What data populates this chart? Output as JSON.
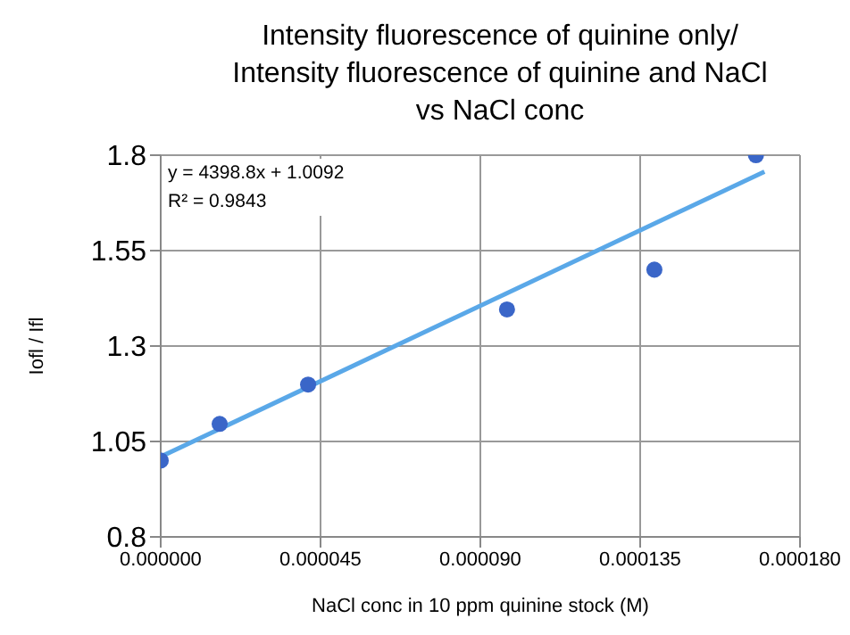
{
  "chart_data": {
    "type": "scatter",
    "title": "Intensity fluorescence of quinine only/ Intensity fluorescence of quinine and NaCl vs NaCl conc",
    "xlabel": "NaCl conc in 10 ppm quinine stock (M)",
    "ylabel": "Iofl / Ifl",
    "series": [
      {
        "color": "#3a66c8",
        "marker": "circle",
        "x": [
          0,
          1.66e-05,
          4.15e-05,
          9.75e-05,
          0.000139,
          0.0001676
        ],
        "values": [
          1.0,
          1.096,
          1.199,
          1.396,
          1.5,
          1.8
        ]
      },
      {
        "type": "line",
        "color": "#5aa8e8",
        "marker": "none",
        "x": [
          0,
          0.00017
        ],
        "values": [
          1.01,
          1.757
        ]
      }
    ],
    "xlim": [
      0,
      0.00018
    ],
    "xticks": [
      {
        "value": 0,
        "label": "0.000000"
      },
      {
        "value": 4.5e-05,
        "label": "0.000045"
      },
      {
        "value": 9e-05,
        "label": "0.000090"
      },
      {
        "value": 0.000135,
        "label": "0.000135"
      },
      {
        "value": 0.00018,
        "label": "0.000180"
      }
    ],
    "ylim": [
      0.8,
      1.8
    ],
    "yticks": [
      0.8,
      1.05,
      1.3,
      1.55,
      1.8
    ],
    "grid": true,
    "line_style": "solid",
    "annotations": [
      "y = 4398.8x + 1.0092",
      "R² = 0.9843"
    ]
  }
}
